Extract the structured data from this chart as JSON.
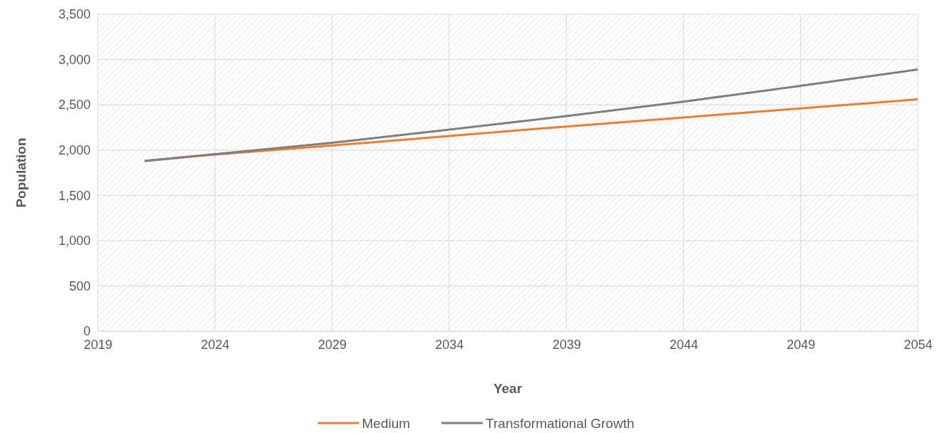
{
  "chart_data": {
    "type": "line",
    "xlabel": "Year",
    "ylabel": "Population",
    "x": [
      2021,
      2024,
      2029,
      2034,
      2039,
      2044,
      2049,
      2054
    ],
    "series": [
      {
        "name": "Medium",
        "color": "#ed7d31",
        "values": [
          1880,
          1950,
          2050,
          2155,
          2260,
          2360,
          2460,
          2560
        ]
      },
      {
        "name": "Transformational Growth",
        "color": "#7f7f7f",
        "values": [
          1880,
          1955,
          2080,
          2225,
          2375,
          2535,
          2710,
          2890
        ]
      }
    ],
    "xlim": [
      2019,
      2054
    ],
    "xticks": [
      2019,
      2024,
      2029,
      2034,
      2039,
      2044,
      2049,
      2054
    ],
    "ylim": [
      0,
      3500
    ],
    "yticks": [
      0,
      {
        "value": 500,
        "label": "500"
      },
      {
        "value": 1000,
        "label": "1,000"
      },
      {
        "value": 1500,
        "label": "1,500"
      },
      {
        "value": 2000,
        "label": "2,000"
      },
      {
        "value": 2500,
        "label": "2,500"
      },
      {
        "value": 3000,
        "label": "3,000"
      },
      {
        "value": 3500,
        "label": "3,500"
      }
    ],
    "grid": true,
    "legend": "bottom",
    "marker": "none",
    "line_style": "solid"
  }
}
